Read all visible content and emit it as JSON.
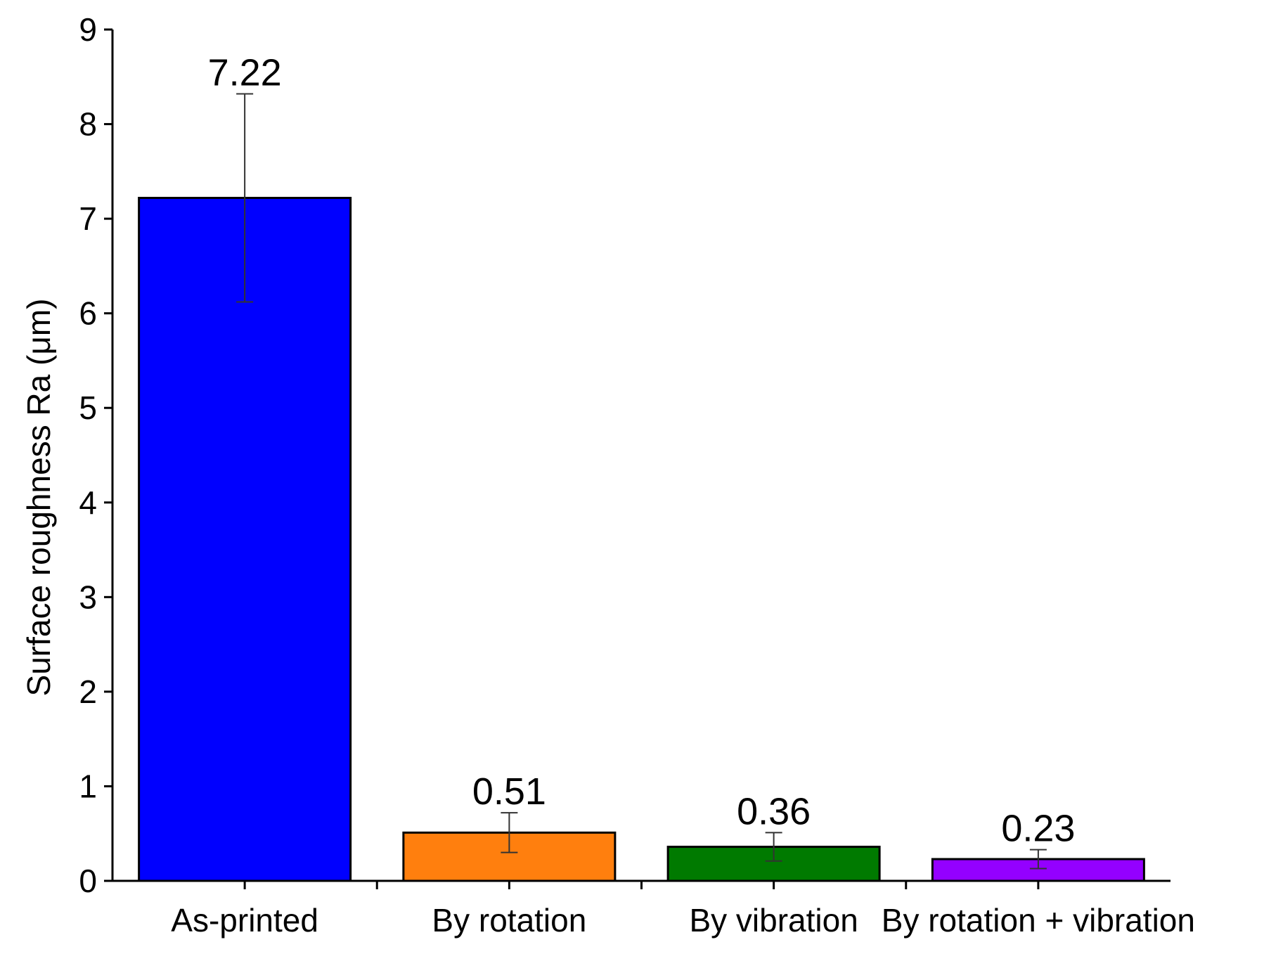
{
  "chart_data": {
    "type": "bar",
    "title": "",
    "xlabel": "",
    "ylabel": "Surface roughness Ra (μm)",
    "ylim": [
      0,
      9
    ],
    "yticks": [
      0,
      1,
      2,
      3,
      4,
      5,
      6,
      7,
      8,
      9
    ],
    "grid": false,
    "legend": "none",
    "categories": [
      "As-printed",
      "By rotation",
      "By vibration",
      "By rotation + vibration"
    ],
    "values": [
      7.22,
      0.51,
      0.36,
      0.23
    ],
    "value_labels": [
      "7.22",
      "0.51",
      "0.36",
      "0.23"
    ],
    "error": [
      1.1,
      0.21,
      0.15,
      0.1
    ],
    "colors": [
      "#0000ff",
      "#ff7f0e",
      "#007a00",
      "#9400ff"
    ]
  }
}
